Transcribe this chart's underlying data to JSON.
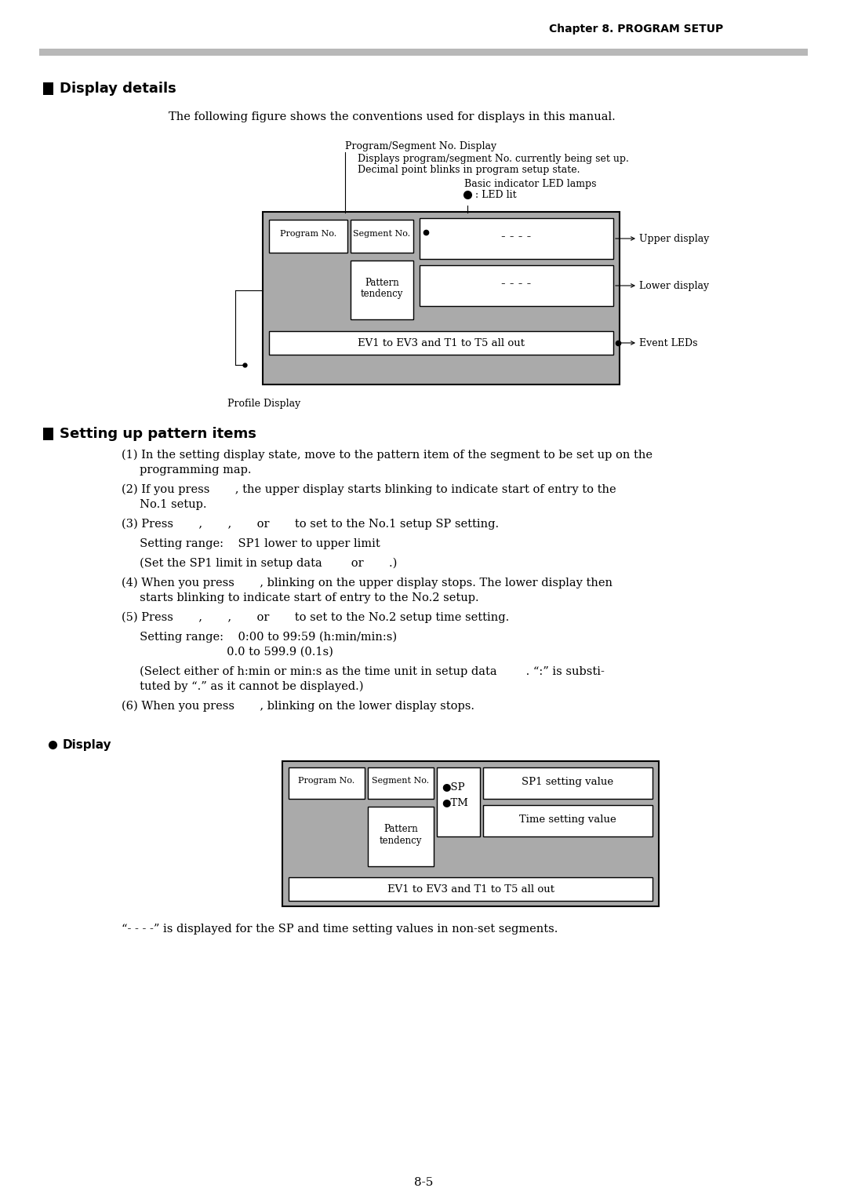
{
  "page_title": "Chapter 8. PROGRAM SETUP",
  "bg_color": "#ffffff",
  "header_bar_color": "#cccccc",
  "diagram_bg": "#aaaaaa",
  "section1_title": "Display details",
  "section2_title": "Setting up pattern items",
  "intro_text": "The following figure shows the conventions used for displays in this manual.",
  "prog_seg_label": "Program/Segment No. Display",
  "prog_seg_desc1": "Displays program/segment No. currently being set up.",
  "prog_seg_desc2": "Decimal point blinks in program setup state.",
  "led_lamps_label": "Basic indicator LED lamps",
  "led_lit_label": ": LED lit",
  "upper_display_label": "Upper display",
  "lower_display_label": "Lower display",
  "event_leds_label": "Event LEDs",
  "profile_display_label": "Profile Display",
  "ev1_text": "EV1 to EV3 and T1 to T5 all out",
  "dashes": "- - - -",
  "program_no": "Program No.",
  "segment_no": "Segment No.",
  "bullet_display": "Display",
  "sp_label": "●SP",
  "tm_label": "●TM",
  "sp1_value_label": "SP1 setting value",
  "time_value_label": "Time setting value",
  "footer_note": "“- - - -” is displayed for the SP and time setting values in non-set segments.",
  "page_number": "8-5",
  "step1a": "(1) In the setting display state, move to the pattern item of the segment to be set up on the",
  "step1b": "     programming map.",
  "step2a": "(2) If you press       , the upper display starts blinking to indicate start of entry to the",
  "step2b": "     No.1 setup.",
  "step3a": "(3) Press       ,       ,       or       to set to the No.1 setup SP setting.",
  "step3b": "     Setting range:    SP1 lower to upper limit",
  "step3c": "     (Set the SP1 limit in setup data        or       .)",
  "step4a": "(4) When you press       , blinking on the upper display stops. The lower display then",
  "step4b": "     starts blinking to indicate start of entry to the No.2 setup.",
  "step5a": "(5) Press       ,       ,       or       to set to the No.2 setup time setting.",
  "step5b": "     Setting range:    0:00 to 99:59 (h:min/min:s)",
  "step5c": "                             0.0 to 599.9 (0.1s)",
  "step5d": "     (Select either of h:min or min:s as the time unit in setup data        . “:” is substi-",
  "step5e": "     tuted by “.” as it cannot be displayed.)",
  "step6a": "(6) When you press       , blinking on the lower display stops."
}
